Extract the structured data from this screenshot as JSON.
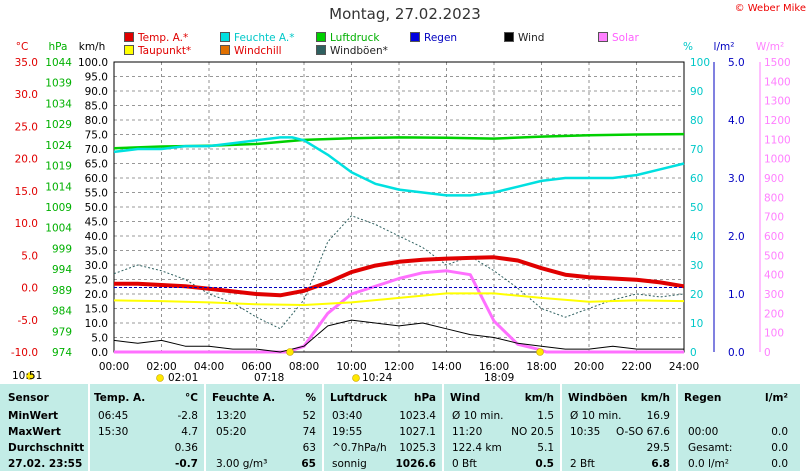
{
  "title": "Montag, 27.02.2023",
  "copyright": "© Weber Mike",
  "legend": [
    {
      "label": "Temp. A.*",
      "color": "#e00000",
      "id": "temp"
    },
    {
      "label": "Feuchte A.*",
      "color": "#00e0e0",
      "id": "hum"
    },
    {
      "label": "Luftdruck",
      "color": "#00d000",
      "id": "press"
    },
    {
      "label": "Regen",
      "color": "#0000e0",
      "id": "rain"
    },
    {
      "label": "Wind",
      "color": "#000000",
      "id": "wind"
    },
    {
      "label": "Solar",
      "color": "#ff80ff",
      "id": "solar"
    },
    {
      "label": "Taupunkt*",
      "color": "#ffff00",
      "id": "dew"
    },
    {
      "label": "Windchill",
      "color": "#e07000",
      "id": "chill"
    },
    {
      "label": "Windböen*",
      "color": "#2f6060",
      "id": "gust"
    }
  ],
  "sun": {
    "sunrise_time": "07:18",
    "sunset_time": "18:09",
    "left_label": "10:51",
    "mid_left": "02:01",
    "mid_right": "10:24"
  },
  "chart_data": {
    "type": "line",
    "title": "Montag, 27.02.2023",
    "x_ticks": [
      "00:00",
      "02:00",
      "04:00",
      "06:00",
      "08:00",
      "10:00",
      "12:00",
      "14:00",
      "16:00",
      "18:00",
      "20:00",
      "22:00",
      "24:00"
    ],
    "axes": {
      "temp": {
        "unit": "°C",
        "range": [
          -10,
          35
        ],
        "ticks": [
          "35.0",
          "30.0",
          "25.0",
          "20.0",
          "15.0",
          "10.0",
          "5.0",
          "0.0",
          "-5.0",
          "-10.0"
        ],
        "color": "#e00000"
      },
      "press": {
        "unit": "hPa",
        "range": [
          974,
          1044
        ],
        "ticks": [
          "1044",
          "1039",
          "1034",
          "1029",
          "1024",
          "1019",
          "1014",
          "1009",
          "1004",
          "999",
          "994",
          "989",
          "984",
          "979",
          "974"
        ],
        "color": "#00b000"
      },
      "wind": {
        "unit": "km/h",
        "range": [
          0,
          100
        ],
        "ticks": [
          "100.0",
          "95.0",
          "90.0",
          "85.0",
          "80.0",
          "75.0",
          "70.0",
          "65.0",
          "60.0",
          "55.0",
          "50.0",
          "45.0",
          "40.0",
          "35.0",
          "30.0",
          "25.0",
          "20.0",
          "15.0",
          "10.0",
          "5.0",
          "0.0"
        ],
        "color": "#000000"
      },
      "hum": {
        "unit": "%",
        "range": [
          0,
          100
        ],
        "ticks": [
          "100",
          "90",
          "80",
          "70",
          "60",
          "50",
          "40",
          "30",
          "20",
          "10",
          "0"
        ],
        "color": "#00c8c8"
      },
      "rain": {
        "unit": "l/m²",
        "range": [
          0,
          5
        ],
        "ticks": [
          "5.0",
          "4.0",
          "3.0",
          "2.0",
          "1.0",
          "0.0"
        ],
        "color": "#0000c0"
      },
      "solar": {
        "unit": "W/m²",
        "range": [
          0,
          1500
        ],
        "ticks": [
          "1500",
          "1400",
          "1300",
          "1200",
          "1100",
          "1000",
          "900",
          "800",
          "700",
          "600",
          "500",
          "400",
          "300",
          "200",
          "100",
          "0"
        ],
        "color": "#ff80ff"
      }
    },
    "series": [
      {
        "name": "Temp. A.*",
        "axis": "temp",
        "x": [
          0,
          1,
          2,
          3,
          4,
          5,
          6,
          7,
          8,
          9,
          10,
          11,
          12,
          13,
          14,
          15,
          16,
          17,
          18,
          19,
          20,
          21,
          22,
          23,
          24
        ],
        "values": [
          0.6,
          0.6,
          0.4,
          0.2,
          -0.2,
          -0.6,
          -1.0,
          -1.2,
          -0.5,
          0.8,
          2.4,
          3.4,
          4.0,
          4.3,
          4.5,
          4.6,
          4.7,
          4.2,
          3.0,
          2.0,
          1.6,
          1.4,
          1.2,
          0.8,
          0.2
        ]
      },
      {
        "name": "Feuchte A.*",
        "axis": "hum",
        "x": [
          0,
          1,
          2,
          3,
          4,
          5,
          6,
          7,
          7.5,
          8,
          9,
          10,
          11,
          12,
          13,
          14,
          15,
          16,
          17,
          18,
          19,
          20,
          21,
          22,
          23,
          24
        ],
        "values": [
          69,
          70,
          70,
          71,
          71,
          72,
          73,
          74,
          74,
          73,
          68,
          62,
          58,
          56,
          55,
          54,
          54,
          55,
          57,
          59,
          60,
          60,
          60,
          61,
          63,
          65
        ]
      },
      {
        "name": "Luftdruck",
        "axis": "press",
        "x": [
          0,
          2,
          4,
          6,
          8,
          10,
          12,
          14,
          16,
          18,
          20,
          22,
          24
        ],
        "values": [
          1023.2,
          1023.6,
          1023.8,
          1024.2,
          1025.2,
          1025.6,
          1025.8,
          1025.7,
          1025.5,
          1026.0,
          1026.3,
          1026.5,
          1026.6
        ]
      },
      {
        "name": "Taupunkt*",
        "axis": "temp",
        "x": [
          0,
          2,
          4,
          6,
          8,
          10,
          12,
          14,
          16,
          18,
          20,
          22,
          24
        ],
        "values": [
          -2.0,
          -2.1,
          -2.3,
          -2.6,
          -2.7,
          -2.3,
          -1.6,
          -0.9,
          -0.9,
          -1.6,
          -2.2,
          -2.0,
          -2.1
        ]
      },
      {
        "name": "Wind",
        "axis": "wind",
        "x": [
          0,
          1,
          2,
          3,
          4,
          5,
          6,
          7,
          8,
          9,
          10,
          11,
          12,
          13,
          14,
          15,
          16,
          17,
          18,
          19,
          20,
          21,
          22,
          23,
          24
        ],
        "values": [
          4,
          3,
          4,
          2,
          2,
          1,
          1,
          0,
          2,
          9,
          11,
          10,
          9,
          10,
          8,
          6,
          5,
          3,
          2,
          1,
          1,
          2,
          1,
          1,
          1
        ]
      },
      {
        "name": "Windböen*",
        "axis": "wind",
        "x": [
          0,
          1,
          2,
          3,
          4,
          5,
          6,
          7,
          8,
          9,
          10,
          11,
          12,
          13,
          14,
          15,
          16,
          17,
          18,
          19,
          20,
          21,
          22,
          23,
          24
        ],
        "values": [
          27,
          30,
          28,
          25,
          20,
          17,
          12,
          8,
          18,
          38,
          47,
          44,
          40,
          36,
          30,
          33,
          28,
          22,
          15,
          12,
          15,
          18,
          20,
          19,
          20
        ]
      },
      {
        "name": "Solar",
        "axis": "solar",
        "x": [
          0,
          7.3,
          8,
          9,
          10,
          11,
          12,
          13,
          14,
          15,
          16,
          17,
          18,
          18.2,
          24
        ],
        "values": [
          0,
          0,
          30,
          200,
          300,
          340,
          380,
          410,
          420,
          400,
          160,
          40,
          10,
          0,
          0
        ]
      }
    ]
  },
  "table": {
    "headers": {
      "sensor": "Sensor",
      "temp": "Temp. A.",
      "temp_unit": "°C",
      "hum": "Feuchte A.",
      "hum_unit": "%",
      "press": "Luftdruck",
      "press_unit": "hPa",
      "wind": "Wind",
      "wind_unit": "km/h",
      "gust": "Windböen",
      "gust_unit": "km/h",
      "rain": "Regen",
      "rain_unit": "l/m²"
    },
    "rows": [
      {
        "label": "MinWert",
        "temp_t": "06:45",
        "temp_v": "-2.8",
        "hum_t": "13:20",
        "hum_v": "52",
        "press_t": "03:40",
        "press_v": "1023.4",
        "wind_t": "Ø 10 min.",
        "wind_v": "1.5",
        "gust_t": "Ø 10 min.",
        "gust_v": "16.9",
        "rain_t": "",
        "rain_v": ""
      },
      {
        "label": "MaxWert",
        "temp_t": "15:30",
        "temp_v": "4.7",
        "hum_t": "05:20",
        "hum_v": "74",
        "press_t": "19:55",
        "press_v": "1027.1",
        "wind_t": "11:20",
        "wind_m": "NO 20.5",
        "wind_v": "",
        "gust_t": "10:35",
        "gust_m": "O-SO 67.6",
        "gust_v": "",
        "rain_t": "00:00",
        "rain_v": "0.0"
      },
      {
        "label": "Durchschnitt",
        "temp_t": "",
        "temp_v": "0.36",
        "hum_t": "",
        "hum_v": "63",
        "press_t": "^0.7hPa/h",
        "press_v": "1025.3",
        "wind_t": "122.4 km",
        "wind_v": "5.1",
        "gust_t": "",
        "gust_v": "29.5",
        "rain_t": "Gesamt:",
        "rain_v": "0.0"
      },
      {
        "label": "27.02. 23:55",
        "temp_t": "",
        "temp_v": "-0.7",
        "hum_t": "3.00 g/m³",
        "hum_v": "65",
        "press_t": "sonnig",
        "press_v": "1026.6",
        "wind_t": "0 Bft",
        "wind_v": "0.5",
        "gust_t": "2 Bft",
        "gust_v": "6.8",
        "rain_t": "0.0 l/m²",
        "rain_v": "0.0"
      }
    ]
  }
}
